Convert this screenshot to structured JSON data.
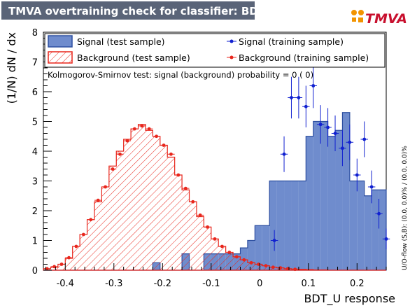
{
  "title": "TMVA overtraining check for classifier: BDT_U",
  "logo_text": "TMVA",
  "colors": {
    "title_bg": "#5a6478",
    "signal_fill": "#6f8ccd",
    "signal_line": "#2d4fa0",
    "background_line": "#e8261c",
    "signal_marker": "#1020d0",
    "background_marker": "#e8261c"
  },
  "legend": {
    "signal_test": "Signal (test sample)",
    "background_test": "Background (test sample)",
    "signal_train": "Signal (training sample)",
    "background_train": "Background (training sample)"
  },
  "ks_text": "Kolmogorov-Smirnov test: signal (background) probability =     0 (    0)",
  "overflow_text": "U/O-flow (S,B): (0.0, 0.0)% / (0.0, 0.0)%",
  "chart_data": {
    "type": "histogram",
    "xlabel": "BDT_U response",
    "ylabel": "(1/N) dN / dx",
    "xlim": [
      -0.445,
      0.26
    ],
    "ylim": [
      0,
      8
    ],
    "xticks": [
      -0.4,
      -0.3,
      -0.2,
      -0.1,
      0,
      0.1,
      0.2
    ],
    "xtick_labels": [
      "-0.4",
      "-0.3",
      "-0.2",
      "-0.1",
      "0",
      "0.1",
      "0.2"
    ],
    "yticks": [
      0,
      1,
      2,
      3,
      4,
      5,
      6,
      7,
      8
    ],
    "ytick_labels": [
      "0",
      "1",
      "2",
      "3",
      "4",
      "5",
      "6",
      "7",
      "8"
    ],
    "bin_edges": [
      -0.445,
      -0.43,
      -0.415,
      -0.4,
      -0.385,
      -0.37,
      -0.355,
      -0.34,
      -0.325,
      -0.31,
      -0.295,
      -0.28,
      -0.265,
      -0.25,
      -0.235,
      -0.22,
      -0.205,
      -0.19,
      -0.175,
      -0.16,
      -0.145,
      -0.13,
      -0.115,
      -0.1,
      -0.085,
      -0.07,
      -0.055,
      -0.04,
      -0.025,
      -0.01,
      0.005,
      0.02,
      0.035,
      0.05,
      0.065,
      0.08,
      0.095,
      0.11,
      0.125,
      0.14,
      0.155,
      0.17,
      0.185,
      0.2,
      0.215,
      0.23,
      0.245,
      0.26
    ],
    "series": [
      {
        "name": "Signal (test sample)",
        "style": "filled",
        "values": [
          0,
          0,
          0,
          0,
          0,
          0,
          0,
          0,
          0,
          0,
          0,
          0,
          0,
          0,
          0,
          0.25,
          0,
          0,
          0,
          0.55,
          0,
          0,
          0.55,
          0.55,
          0.55,
          0.55,
          0.55,
          0.75,
          1.0,
          1.5,
          1.5,
          3.0,
          3.0,
          3.0,
          3.0,
          3.0,
          4.5,
          5.0,
          5.0,
          4.5,
          4.7,
          5.3,
          3.0,
          3.0,
          2.5,
          2.7,
          2.7
        ]
      },
      {
        "name": "Background (test sample)",
        "style": "hatched",
        "values": [
          0.05,
          0.1,
          0.2,
          0.4,
          0.8,
          1.2,
          1.7,
          2.3,
          2.8,
          3.5,
          4.0,
          4.4,
          4.75,
          4.9,
          4.7,
          4.5,
          4.2,
          3.8,
          3.2,
          2.7,
          2.3,
          1.8,
          1.45,
          1.05,
          0.8,
          0.6,
          0.45,
          0.35,
          0.25,
          0.2,
          0.15,
          0.1,
          0.08,
          0.05,
          0.04,
          0.03,
          0.02,
          0.01,
          0.01,
          0,
          0,
          0,
          0,
          0,
          0,
          0,
          0
        ]
      },
      {
        "name": "Signal (training sample)",
        "style": "markers",
        "x": [
          0.03,
          0.05,
          0.065,
          0.08,
          0.095,
          0.11,
          0.125,
          0.14,
          0.155,
          0.17,
          0.185,
          0.2,
          0.215,
          0.23,
          0.245,
          0.26
        ],
        "y": [
          1.0,
          3.9,
          5.8,
          5.8,
          5.5,
          6.2,
          4.9,
          4.8,
          4.6,
          4.1,
          4.3,
          3.2,
          4.4,
          2.8,
          1.9,
          1.05
        ],
        "yerr": [
          0.35,
          0.6,
          0.7,
          0.7,
          0.7,
          0.75,
          0.65,
          0.65,
          0.6,
          0.6,
          0.6,
          0.55,
          0.6,
          0.55,
          0.5,
          0.35
        ]
      },
      {
        "name": "Background (training sample)",
        "style": "markers",
        "x": [
          -0.4375,
          -0.4225,
          -0.4075,
          -0.3925,
          -0.3775,
          -0.3625,
          -0.3475,
          -0.3325,
          -0.3175,
          -0.3025,
          -0.2875,
          -0.2725,
          -0.2575,
          -0.2425,
          -0.2275,
          -0.2125,
          -0.1975,
          -0.1825,
          -0.1675,
          -0.1525,
          -0.1375,
          -0.1225,
          -0.1075,
          -0.0925,
          -0.0775,
          -0.0625,
          -0.0475,
          -0.0325,
          -0.0175,
          -0.0025,
          0.0125,
          0.0275,
          0.0425,
          0.0575,
          0.0725
        ],
        "y": [
          0.05,
          0.12,
          0.2,
          0.42,
          0.8,
          1.2,
          1.7,
          2.35,
          2.8,
          3.4,
          3.9,
          4.35,
          4.75,
          4.85,
          4.75,
          4.5,
          4.2,
          3.9,
          3.2,
          2.75,
          2.3,
          1.85,
          1.45,
          1.05,
          0.8,
          0.6,
          0.45,
          0.35,
          0.25,
          0.2,
          0.15,
          0.1,
          0.08,
          0.05,
          0.03
        ]
      }
    ]
  }
}
